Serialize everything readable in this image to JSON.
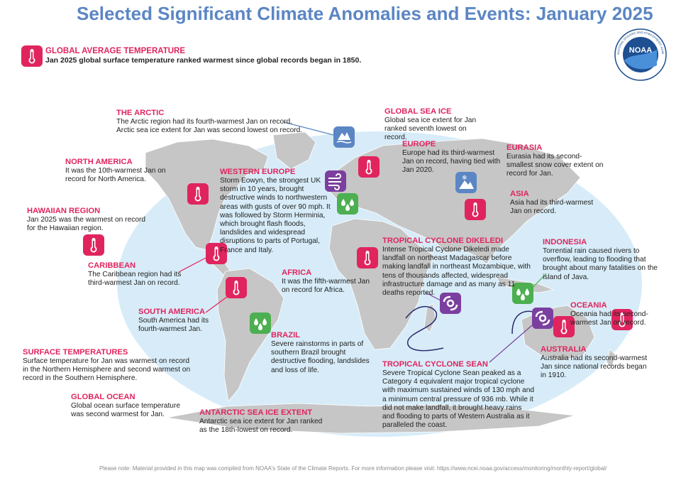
{
  "title": "Selected Significant Climate Anomalies and Events: January 2025",
  "logo": {
    "text": "NOAA",
    "ring_text": "NATIONAL OCEANIC AND ATMOSPHERIC ADMINISTRATION · U.S. DEPARTMENT OF COMMERCE"
  },
  "colors": {
    "heading": "#e0245e",
    "title": "#5b86c4",
    "ocean": "#d7ecf8",
    "land": "#c8c8c8",
    "thermometer": "#e0245e",
    "rain": "#4caf50",
    "storm": "#7b3fa0",
    "sea_ice": "#5b86c4"
  },
  "global_average": {
    "heading": "GLOBAL AVERAGE TEMPERATURE",
    "text": "Jan 2025 global surface temperature ranked warmest since global records began in 1850."
  },
  "events": {
    "arctic": {
      "heading": "THE ARCTIC",
      "text": "The Arctic region had its fourth-warmest Jan on record. Arctic sea ice extent for Jan was second lowest on record."
    },
    "sea_ice": {
      "heading": "GLOBAL SEA ICE",
      "text": "Global sea ice extent for Jan ranked seventh lowest on record."
    },
    "north_america": {
      "heading": "NORTH AMERICA",
      "text": "It was the 10th-warmest Jan on record for North America."
    },
    "western_europe": {
      "heading": "WESTERN EUROPE",
      "text": "Storm Eowyn, the strongest UK storm in 10 years, brought destructive winds to northwestern areas with gusts of over 90 mph. It was followed by Storm Herminia, which brought flash floods, landslides and widespread disruptions to parts of Portugal, France and Italy."
    },
    "europe": {
      "heading": "EUROPE",
      "text": "Europe had its third-warmest Jan on record, having tied with Jan 2020."
    },
    "eurasia": {
      "heading": "EURASIA",
      "text": "Eurasia had its second-smallest snow cover extent on record for Jan."
    },
    "asia": {
      "heading": "ASIA",
      "text": "Asia had its third-warmest Jan on record."
    },
    "hawaii": {
      "heading": "HAWAIIAN REGION",
      "text": "Jan 2025 was the warmest on record for the Hawaiian region."
    },
    "caribbean": {
      "heading": "CARIBBEAN",
      "text": "The Caribbean region had its third-warmest Jan on record."
    },
    "dikeledi": {
      "heading": "TROPICAL CYCLONE DIKELEDI",
      "text": "Intense Tropical Cyclone Dikeledi made landfall on northeast Madagascar before making landfall in northeast Mozambique, with tens of thousands affected, widespread infrastructure damage and as many as 11 deaths reported."
    },
    "indonesia": {
      "heading": "INDONESIA",
      "text": "Torrential rain caused rivers to overflow, leading to flooding that brought about many fatalities on the island of Java."
    },
    "africa": {
      "heading": "AFRICA",
      "text": "It was the fifth-warmest Jan on record for Africa."
    },
    "oceania": {
      "heading": "OCEANIA",
      "text": "Oceania had its second-warmest Jan on record."
    },
    "south_america": {
      "heading": "SOUTH AMERICA",
      "text": "South America had its fourth-warmest Jan."
    },
    "brazil": {
      "heading": "BRAZIL",
      "text": "Severe rainstorms in parts of southern Brazil brought destructive flooding, landslides and loss of life."
    },
    "surface": {
      "heading": "SURFACE TEMPERATURES",
      "text": "Surface temperature for Jan was warmest on record in the Northern Hemisphere and second warmest on record in the Southern Hemisphere."
    },
    "sean": {
      "heading": "TROPICAL CYCLONE SEAN",
      "text": "Severe Tropical Cyclone Sean peaked as a Category 4 equivalent major tropical cyclone with maximum sustained winds of 130 mph and a minimum central pressure of 936 mb. While it did not make landfall, it brought heavy rains and flooding to parts of Western Australia as it paralleled the coast."
    },
    "australia": {
      "heading": "AUSTRALIA",
      "text": "Australia had its second-warmest Jan since national records began in 1910."
    },
    "ocean": {
      "heading": "GLOBAL OCEAN",
      "text": "Global ocean surface temperature was second warmest for Jan."
    },
    "antarctic": {
      "heading": "ANTARCTIC SEA ICE EXTENT",
      "text": "Antarctic sea ice extent for Jan ranked as the 18th-lowest on record."
    }
  },
  "footnote": "Please note: Material provided in this map was compiled from NOAA's State of the Climate Reports. For more information please visit: https://www.ncei.noaa.gov/access/monitoring/monthly-report/global/"
}
